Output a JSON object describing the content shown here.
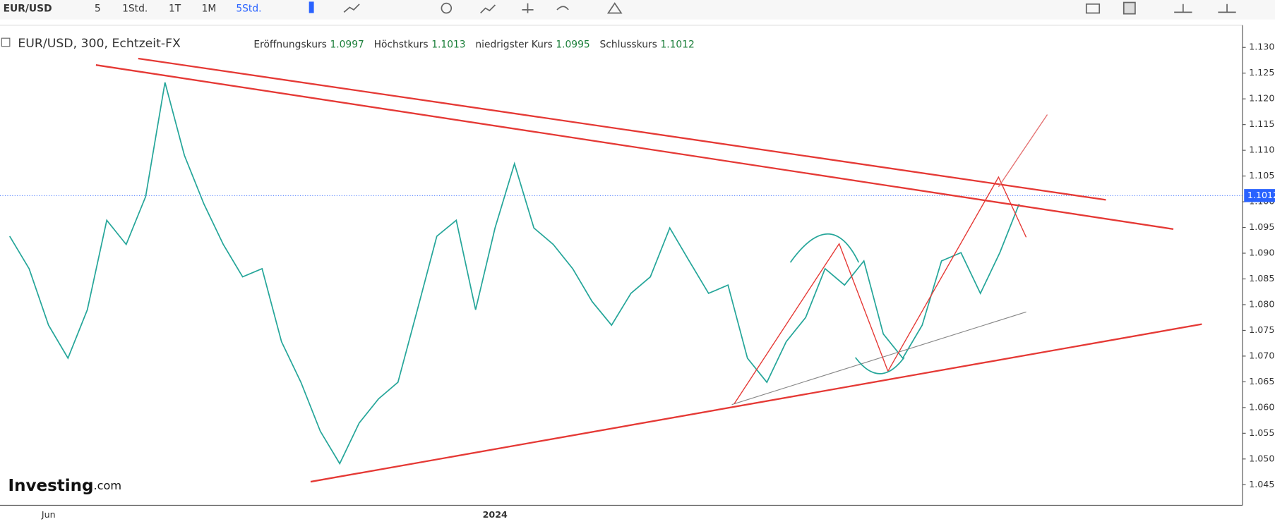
{
  "toolbar": {
    "symbol": "EUR/USD",
    "intervals": [
      "5",
      "1Std.",
      "1T",
      "1M",
      "5Std."
    ],
    "active_interval": 4
  },
  "legend": {
    "symbol": "EUR/USD, 300, Echtzeit-FX",
    "items": [
      {
        "label": "Eröffnungskurs",
        "value": "1.0997"
      },
      {
        "label": "Höchstkurs",
        "value": "1.1013"
      },
      {
        "label": "niedrigster Kurs",
        "value": "1.0995"
      },
      {
        "label": "Schlusskurs",
        "value": "1.1012"
      }
    ]
  },
  "logo": {
    "brand": "Investing",
    "suffix": ".com"
  },
  "chart_data": {
    "type": "line",
    "last_price": 1.1012,
    "categories": [
      null,
      null,
      "Jun",
      null,
      null,
      null,
      null,
      null,
      null,
      null,
      null,
      null,
      null,
      null,
      null,
      null,
      null,
      null,
      null,
      null,
      null,
      null,
      null,
      null,
      null,
      "2024",
      null,
      null,
      null,
      null,
      null,
      null,
      null,
      null,
      null,
      null,
      null,
      null,
      null,
      null,
      null,
      null,
      null,
      null,
      null,
      null,
      null,
      null,
      null,
      null,
      null,
      null,
      null,
      null,
      null,
      null,
      null,
      null,
      null,
      null,
      null,
      null,
      null,
      null
    ],
    "series": [
      {
        "name": "EUR/USD",
        "color": "#26a69a",
        "values": [
          1.0933,
          1.087,
          1.076,
          1.0696,
          1.079,
          1.0964,
          1.0917,
          1.101,
          1.1232,
          1.109,
          1.0996,
          1.0917,
          1.0854,
          1.087,
          1.0728,
          1.0649,
          1.0554,
          1.0491,
          1.057,
          1.0617,
          1.0649,
          1.079,
          1.0933,
          1.0964,
          1.079,
          1.0949,
          1.1074,
          1.0949,
          1.0917,
          1.087,
          1.0806,
          1.076,
          1.0822,
          1.0854,
          1.0949,
          1.0885,
          1.0822,
          1.0838,
          1.0696,
          1.0649,
          1.0728,
          1.0775,
          1.087,
          1.0838,
          1.0885,
          1.0743,
          1.0696,
          1.076,
          1.0885,
          1.0901,
          1.0822,
          1.0901,
          1.0996,
          null,
          null,
          null,
          null,
          null,
          null,
          null,
          null,
          null,
          null,
          null
        ]
      }
    ],
    "ylim": [
      1.041,
      1.134
    ],
    "yticks": [
      {
        "value": 1.045,
        "label": "1.0450"
      },
      {
        "value": 1.05,
        "label": "1.0500"
      },
      {
        "value": 1.055,
        "label": "1.0550"
      },
      {
        "value": 1.06,
        "label": "1.0600"
      },
      {
        "value": 1.065,
        "label": "1.0650"
      },
      {
        "value": 1.07,
        "label": "1.0700"
      },
      {
        "value": 1.075,
        "label": "1.0750"
      },
      {
        "value": 1.08,
        "label": "1.0800"
      },
      {
        "value": 1.085,
        "label": "1.0850"
      },
      {
        "value": 1.09,
        "label": "1.0900"
      },
      {
        "value": 1.095,
        "label": "1.0950"
      },
      {
        "value": 1.1,
        "label": "1.1000"
      },
      {
        "value": 1.105,
        "label": "1.1050"
      },
      {
        "value": 1.11,
        "label": "1.1100"
      },
      {
        "value": 1.115,
        "label": "1.1150"
      },
      {
        "value": 1.12,
        "label": "1.1200"
      },
      {
        "value": 1.125,
        "label": "1.1250"
      },
      {
        "value": 1.13,
        "label": "1.1300"
      }
    ]
  }
}
